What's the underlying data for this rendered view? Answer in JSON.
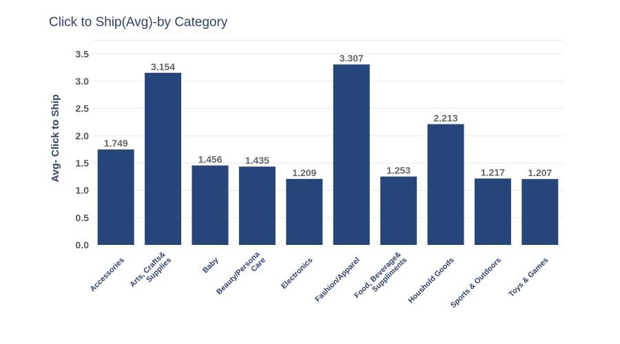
{
  "chart_data": {
    "type": "bar",
    "title": "Click to Ship(Avg)-by Category",
    "ylabel": "Avg- Click to Ship",
    "xlabel": "",
    "categories": [
      "Accessories",
      "Arts, Crafts& Supplies",
      "Baby",
      "Beauty/Persona Care",
      "Electronics",
      "Fashion/Apparel",
      "Food, Beverage& Suppliments",
      "Houshold Goods",
      "Sports & Outdoors",
      "Toys & Games"
    ],
    "category_lines": [
      [
        "Accessories"
      ],
      [
        "Arts, Crafts&",
        "Supplies"
      ],
      [
        "Baby"
      ],
      [
        "Beauty/Persona",
        "Care"
      ],
      [
        "Electronics"
      ],
      [
        "Fashion/Apparel"
      ],
      [
        "Food, Beverage&",
        "Suppliments"
      ],
      [
        "Houshold Goods"
      ],
      [
        "Sports & Outdoors"
      ],
      [
        "Toys & Games"
      ]
    ],
    "values": [
      1.749,
      3.154,
      1.456,
      1.435,
      1.209,
      3.307,
      1.253,
      2.213,
      1.217,
      1.207
    ],
    "value_labels": [
      "1.749",
      "3.154",
      "1.456",
      "1.435",
      "1.209",
      "3.307",
      "1.253",
      "2.213",
      "1.217",
      "1.207"
    ],
    "ylim": [
      0,
      3.5
    ],
    "yticks": [
      0,
      0.5,
      1,
      1.5,
      2,
      2.5,
      3,
      3.5
    ],
    "ytick_labels": [
      "0.0",
      "0.5",
      "1.0",
      "1.5",
      "2.0",
      "2.5",
      "3.0",
      "3.5"
    ],
    "grid": true,
    "legend": "none",
    "bar_color": "#26457a"
  }
}
